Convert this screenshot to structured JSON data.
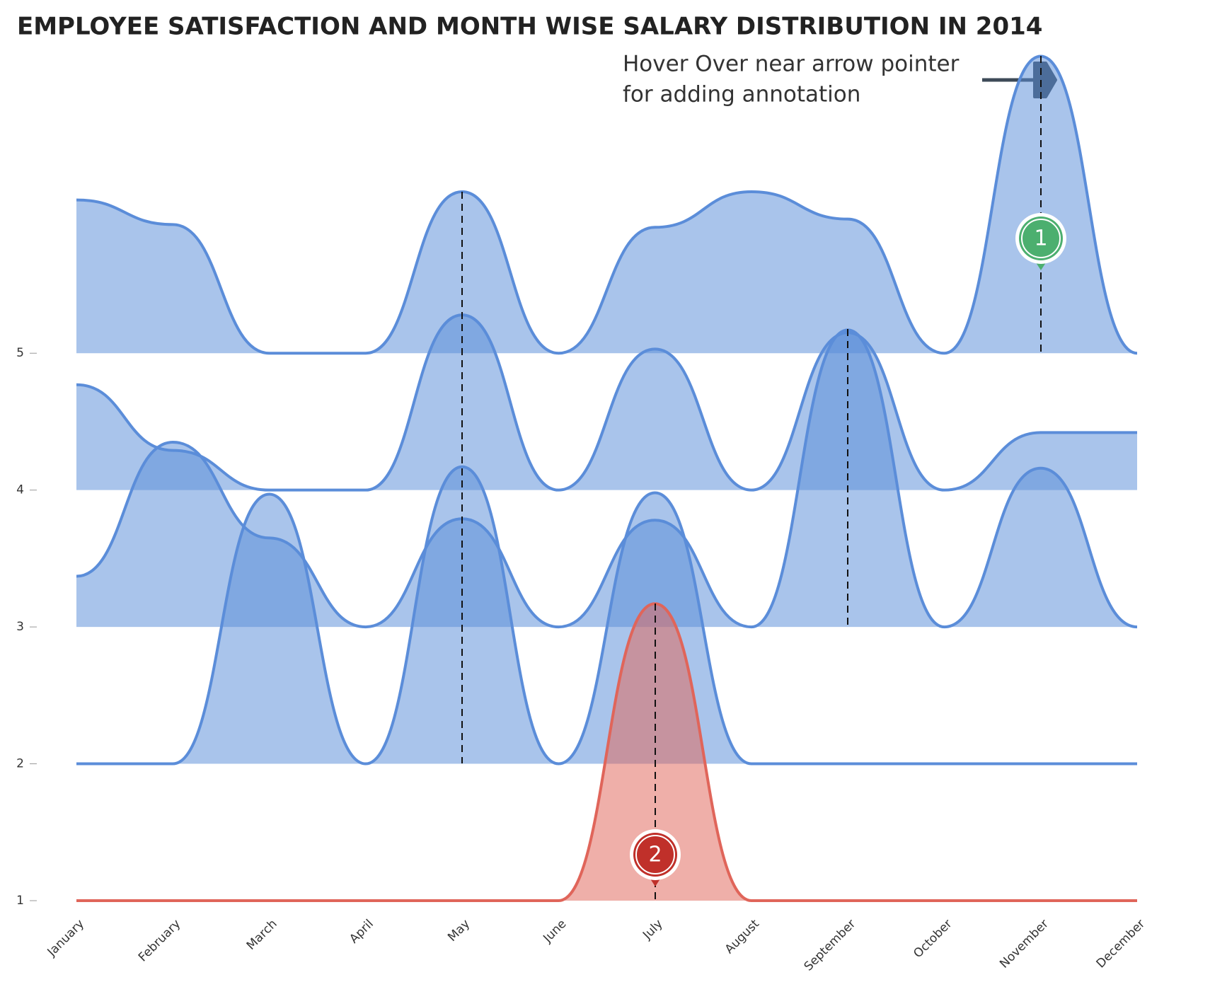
{
  "chart_data": {
    "type": "ridgeline",
    "title": "EMPLOYEE SATISFACTION AND MONTH WISE SALARY DISTRIBUTION IN 2014",
    "note": [
      "Hover Over near arrow pointer",
      "for adding annotation"
    ],
    "annotations": [
      "1",
      "2"
    ],
    "categories": [
      "January",
      "February",
      "March",
      "April",
      "May",
      "June",
      "July",
      "August",
      "September",
      "October",
      "November",
      "December"
    ],
    "ylim": [
      1,
      7.25
    ],
    "yticks": [
      1,
      2,
      3,
      4,
      5
    ],
    "series": [
      {
        "color": "#e0655a",
        "values": [
          1,
          1,
          1,
          1,
          1,
          1,
          3.17,
          1,
          1,
          1,
          1,
          1
        ]
      },
      {
        "color": "#5b8dd9",
        "values": [
          2,
          2,
          3.97,
          2,
          4.17,
          2,
          3.98,
          2,
          2,
          2,
          2,
          2
        ]
      },
      {
        "color": "#5b8dd9",
        "values": [
          3.37,
          4.35,
          3.65,
          3,
          3.79,
          3,
          3.78,
          3,
          5.17,
          3,
          4.16,
          3
        ]
      },
      {
        "color": "#5b8dd9",
        "values": [
          4.77,
          4.29,
          4,
          4,
          5.28,
          4,
          5.03,
          4,
          5.15,
          4,
          4.42,
          4.42
        ]
      },
      {
        "color": "#5b8dd9",
        "values": [
          6.12,
          5.94,
          5,
          5,
          6.18,
          5,
          5.92,
          6.18,
          5.98,
          5,
          7.17,
          5
        ]
      }
    ]
  }
}
